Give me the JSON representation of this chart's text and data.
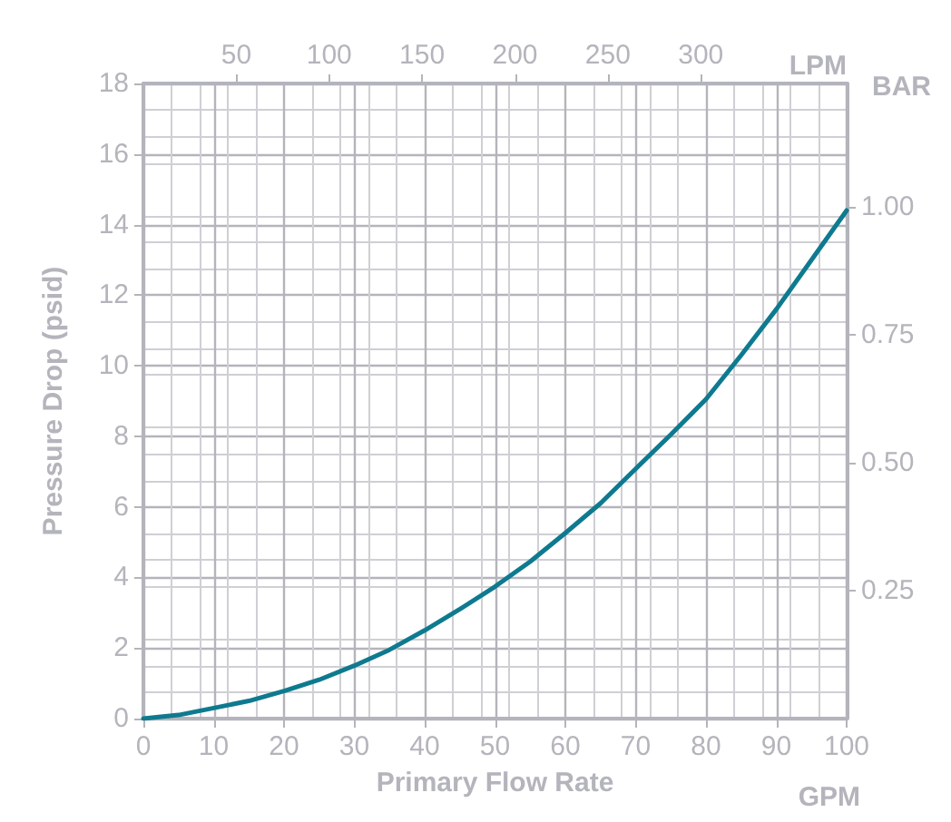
{
  "chart_data": {
    "type": "line",
    "xlabel": "Primary Flow Rate",
    "ylabel": "Pressure Drop (psid)",
    "x2label": "LPM",
    "y2label": "BAR",
    "annotations": [
      "GPM"
    ],
    "x": [
      0,
      5,
      10,
      15,
      20,
      25,
      30,
      35,
      40,
      45,
      50,
      55,
      60,
      65,
      70,
      75,
      80,
      85,
      90,
      95,
      100
    ],
    "series": [
      {
        "color": "#0e7a8f",
        "values": [
          0,
          0.1,
          0.3,
          0.5,
          0.78,
          1.1,
          1.5,
          1.95,
          2.5,
          3.1,
          3.74,
          4.45,
          5.26,
          6.1,
          7.08,
          8.05,
          9.05,
          10.3,
          11.6,
          13.0,
          14.4
        ]
      }
    ],
    "xlim": [
      0,
      100
    ],
    "xticks": [
      0,
      10,
      20,
      30,
      40,
      50,
      60,
      70,
      80,
      90,
      100
    ],
    "ylim": [
      0,
      18
    ],
    "yticks": [
      0,
      2,
      4,
      6,
      8,
      10,
      12,
      14,
      16,
      18
    ],
    "x2lim": [
      0,
      378.5
    ],
    "x2ticks": [
      50,
      100,
      150,
      200,
      250,
      300
    ],
    "y2lim": [
      0,
      1.241
    ],
    "y2ticks": [
      0.25,
      {
        "value": 0.5,
        "label": "0.50"
      },
      0.75,
      {
        "value": 1,
        "label": "1.00"
      }
    ],
    "grid": true,
    "line_style": "solid"
  }
}
